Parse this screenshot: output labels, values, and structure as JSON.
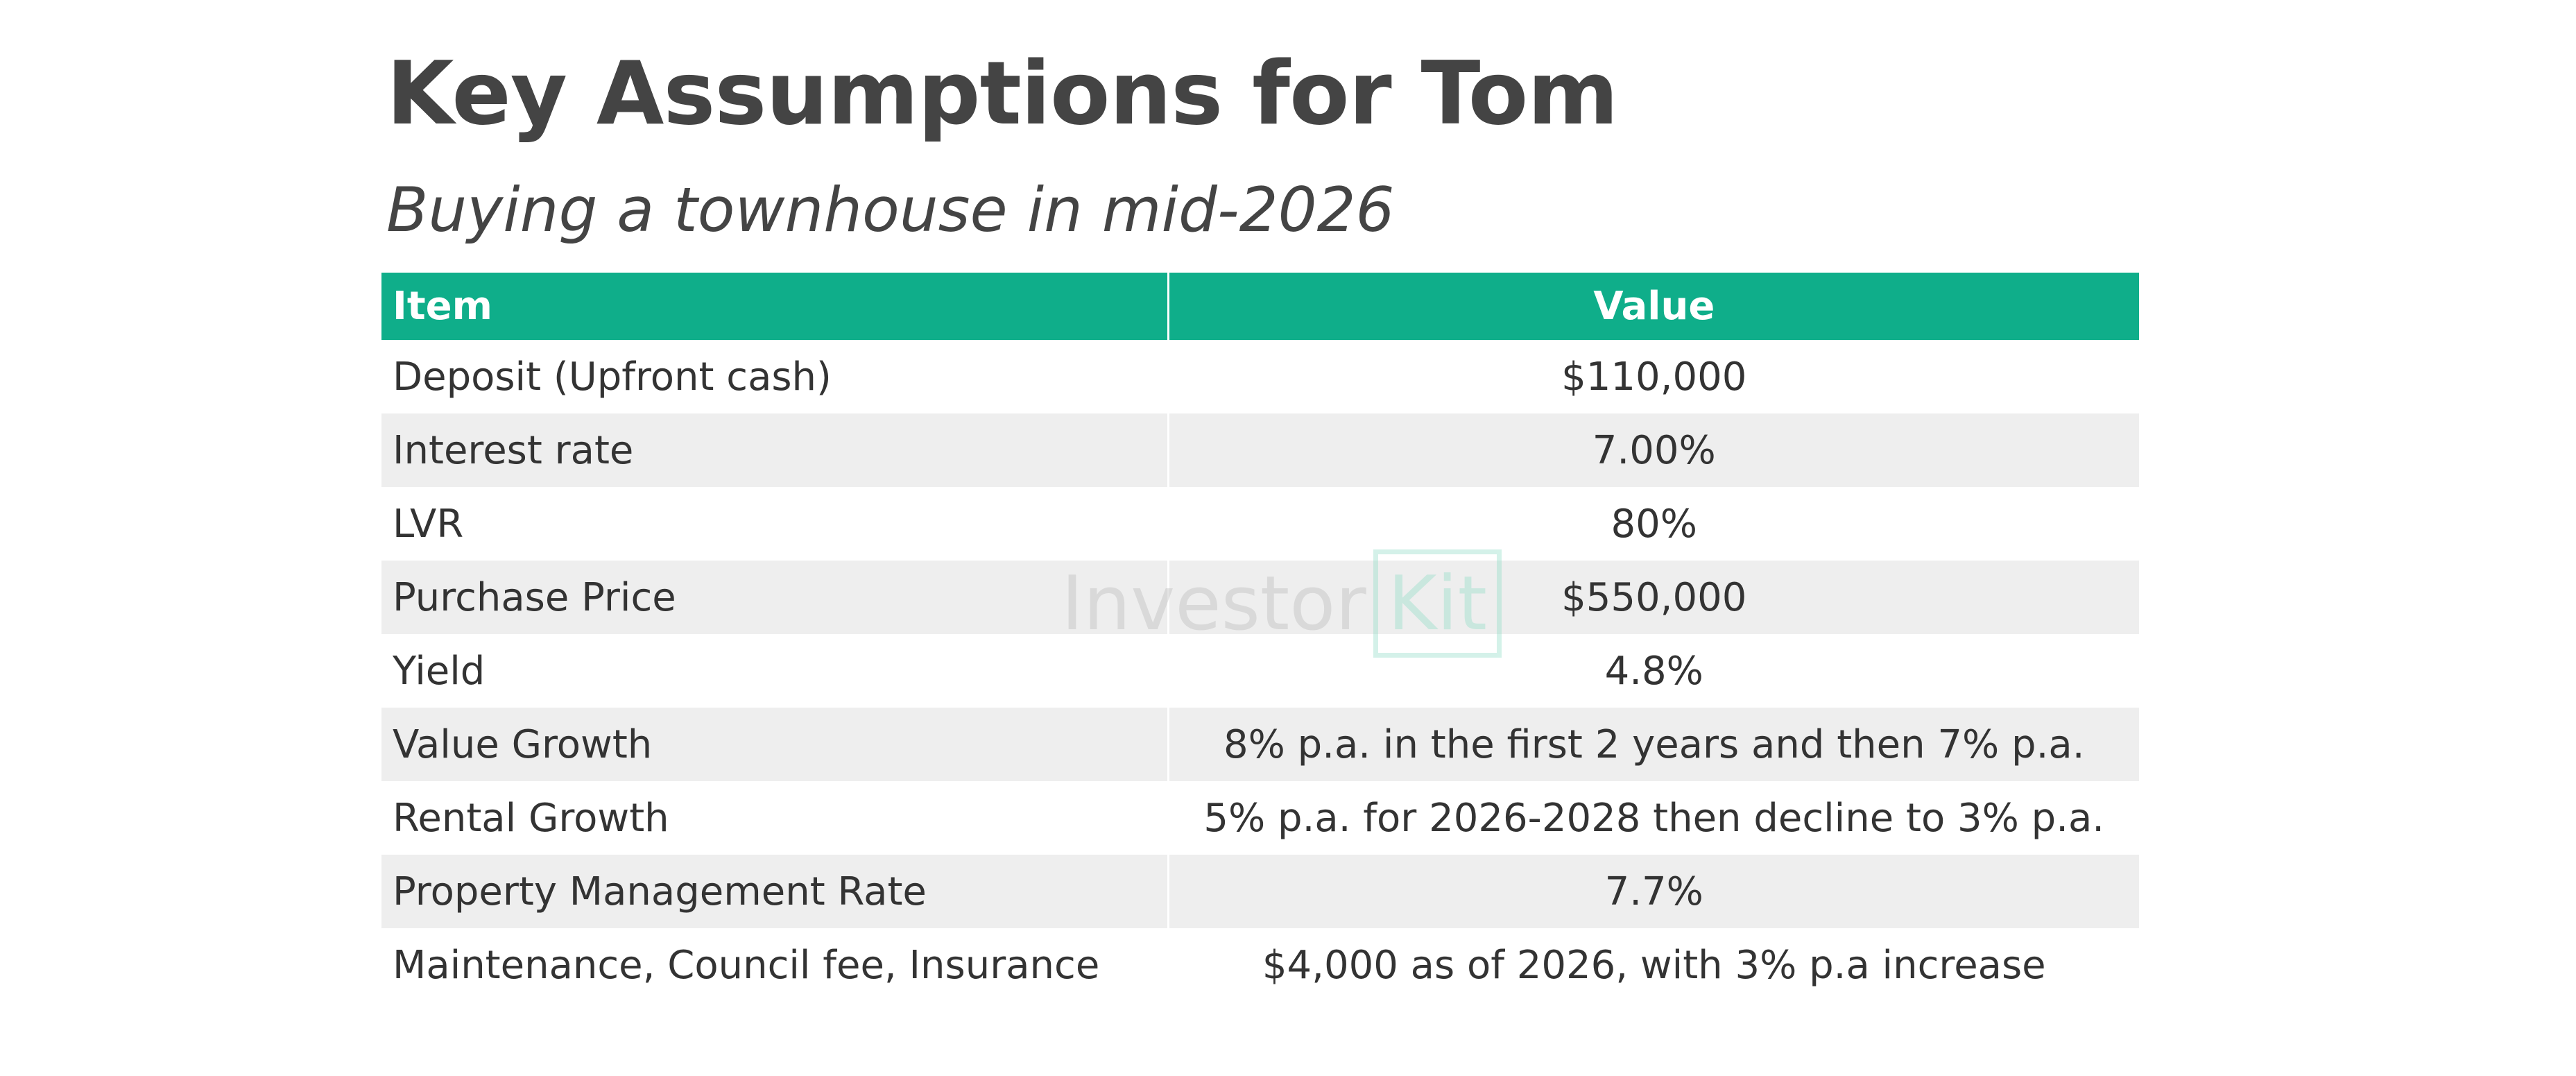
{
  "header": {
    "title": "Key Assumptions for Tom",
    "subtitle": "Buying a townhouse in mid-2026"
  },
  "table": {
    "columns": [
      "Item",
      "Value"
    ],
    "rows": [
      {
        "item": "Deposit (Upfront cash)",
        "value": "$110,000"
      },
      {
        "item": "Interest rate",
        "value": "7.00%"
      },
      {
        "item": "LVR",
        "value": "80%"
      },
      {
        "item": "Purchase Price",
        "value": "$550,000"
      },
      {
        "item": "Yield",
        "value": "4.8%"
      },
      {
        "item": "Value Growth",
        "value": "8% p.a. in the first 2 years and then 7% p.a."
      },
      {
        "item": "Rental Growth",
        "value": "5% p.a. for 2026-2028 then decline to 3% p.a."
      },
      {
        "item": "Property Management Rate",
        "value": "7.7%"
      },
      {
        "item": "Maintenance, Council fee, Insurance",
        "value": "$4,000 as of 2026, with 3% p.a increase"
      }
    ]
  },
  "watermark": {
    "word": "Investor",
    "box_word": "Kit"
  },
  "colors": {
    "header_bg": "#0fae8a",
    "row_alt_bg": "#eeeeee",
    "text": "#444444",
    "watermark_accent": "#8fdcc6"
  }
}
